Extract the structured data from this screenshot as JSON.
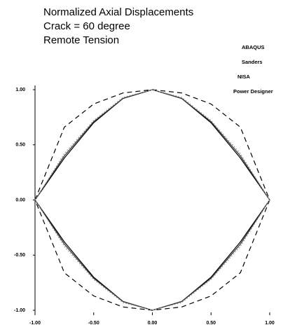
{
  "chart_data": {
    "type": "line",
    "title": [
      "Normalized Axial Displacements",
      "Crack = 60 degree",
      "Remote Tension"
    ],
    "x": [
      -1,
      -0.75,
      -0.5,
      -0.25,
      0,
      0.25,
      0.5,
      0.75,
      1,
      0.75,
      0.5,
      0.25,
      0,
      -0.25,
      -0.5,
      -0.75,
      -1
    ],
    "series": [
      {
        "name": "ABAQUS",
        "color": "#000000",
        "style": "solid",
        "values": [
          0,
          0.38,
          0.7,
          0.92,
          1,
          0.92,
          0.7,
          0.38,
          0,
          -0.38,
          -0.7,
          -0.92,
          -1,
          -0.92,
          -0.7,
          -0.38,
          0
        ]
      },
      {
        "name": "Sanders",
        "color": "#000000",
        "style": "dashed",
        "values": [
          0,
          0.66,
          0.87,
          0.97,
          1,
          0.97,
          0.87,
          0.66,
          0,
          -0.66,
          -0.87,
          -0.97,
          -1,
          -0.97,
          -0.87,
          -0.66,
          0
        ]
      },
      {
        "name": "NISA",
        "color": "#333333",
        "style": "solid",
        "values": [
          0,
          0.4,
          0.71,
          0.92,
          1,
          0.92,
          0.71,
          0.4,
          0,
          -0.4,
          -0.71,
          -0.92,
          -1,
          -0.92,
          -0.71,
          -0.4,
          0
        ]
      },
      {
        "name": "Power Designer",
        "color": "#999999",
        "style": "dotted",
        "values": [
          0,
          0.42,
          0.72,
          0.93,
          1,
          0.93,
          0.72,
          0.42,
          0,
          -0.42,
          -0.72,
          -0.93,
          -1,
          -0.93,
          -0.72,
          -0.42,
          0
        ]
      }
    ],
    "xlim": [
      -1,
      1
    ],
    "ylim": [
      -1,
      1
    ],
    "xticks": [
      {
        "value": -1,
        "label": "-1.00"
      },
      {
        "value": -0.5,
        "label": "-0.50"
      },
      {
        "value": 0,
        "label": "0.00"
      },
      {
        "value": 0.5,
        "label": "0.50"
      },
      {
        "value": 1,
        "label": "1.00"
      }
    ],
    "yticks": [
      {
        "value": -1,
        "label": "-1.00"
      },
      {
        "value": -0.5,
        "label": "-0.50"
      },
      {
        "value": 0,
        "label": "0.00"
      },
      {
        "value": 0.5,
        "label": "0.50"
      },
      {
        "value": 1,
        "label": "1.00"
      }
    ],
    "grid": false
  }
}
